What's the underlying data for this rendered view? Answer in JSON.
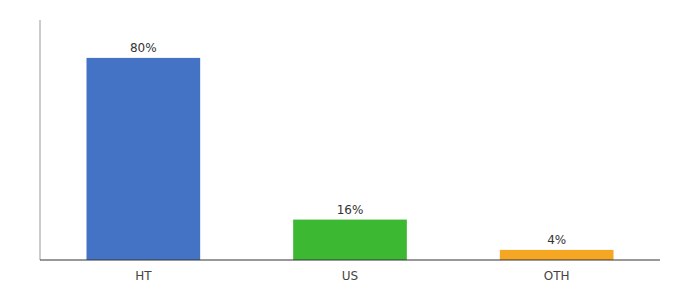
{
  "chart_data": {
    "type": "bar",
    "categories": [
      "HT",
      "US",
      "OTH"
    ],
    "values": [
      80,
      16,
      4
    ],
    "value_labels": [
      "80%",
      "16%",
      "4%"
    ],
    "colors": [
      "#4472c4",
      "#3cb832",
      "#f5a623"
    ],
    "ylim": [
      0,
      95
    ],
    "yticks": [],
    "grid": false,
    "data_labels": true,
    "tick_labels": "x"
  }
}
